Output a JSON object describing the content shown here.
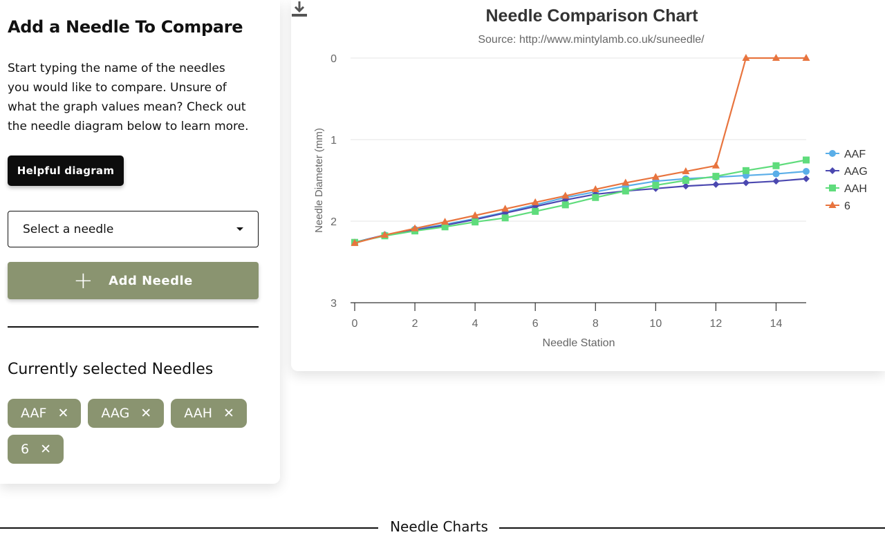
{
  "left": {
    "title": "Add a Needle To Compare",
    "description": "Start typing the name of the needles you would like to compare. Unsure of what the graph values mean? Check out the needle diagram below to learn more.",
    "helpful_button": "Helpful diagram",
    "select_placeholder": "Select a needle",
    "add_button": "Add Needle",
    "selected_title": "Currently selected Needles",
    "chips": [
      {
        "label": "AAF",
        "remove": "✕"
      },
      {
        "label": "AAG",
        "remove": "✕"
      },
      {
        "label": "AAH",
        "remove": "✕"
      },
      {
        "label": "6",
        "remove": "✕"
      }
    ]
  },
  "footer": {
    "label": "Needle Charts"
  },
  "colors": {
    "accent": "#8a9470",
    "dark": "#0d0d0d"
  },
  "chart_data": {
    "type": "line",
    "title": "Needle Comparison Chart",
    "subtitle": "Source: http://www.mintylamb.co.uk/suneedle/",
    "xlabel": "Needle Station",
    "ylabel": "Needle Diameter (mm)",
    "xlim": [
      0,
      15
    ],
    "ylim": [
      0,
      3
    ],
    "y_reversed": true,
    "x_ticks": [
      0,
      2,
      4,
      6,
      8,
      10,
      12,
      14
    ],
    "y_ticks": [
      0,
      1,
      2,
      3
    ],
    "grid": true,
    "legend_position": "right",
    "x": [
      0,
      1,
      2,
      3,
      4,
      5,
      6,
      7,
      8,
      9,
      10,
      11,
      12,
      13,
      14,
      15
    ],
    "series": [
      {
        "name": "AAF",
        "color": "#5aaee8",
        "marker": "circle",
        "values": [
          2.26,
          2.17,
          2.1,
          2.04,
          1.97,
          1.89,
          1.8,
          1.71,
          1.64,
          1.57,
          1.51,
          1.48,
          1.46,
          1.44,
          1.42,
          1.39
        ]
      },
      {
        "name": "AAG",
        "color": "#4b48b0",
        "marker": "diamond",
        "values": [
          2.26,
          2.17,
          2.11,
          2.05,
          1.98,
          1.9,
          1.82,
          1.74,
          1.67,
          1.63,
          1.6,
          1.57,
          1.55,
          1.53,
          1.51,
          1.48
        ]
      },
      {
        "name": "AAH",
        "color": "#5fdc7c",
        "marker": "square",
        "values": [
          2.26,
          2.18,
          2.12,
          2.07,
          2.01,
          1.96,
          1.88,
          1.8,
          1.71,
          1.63,
          1.56,
          1.5,
          1.45,
          1.38,
          1.32,
          1.25
        ]
      },
      {
        "name": "6",
        "color": "#e8743e",
        "marker": "triangle",
        "values": [
          2.27,
          2.17,
          2.09,
          2.01,
          1.93,
          1.85,
          1.77,
          1.69,
          1.61,
          1.53,
          1.46,
          1.39,
          1.32,
          0.0,
          0.0,
          0.0
        ]
      }
    ]
  }
}
